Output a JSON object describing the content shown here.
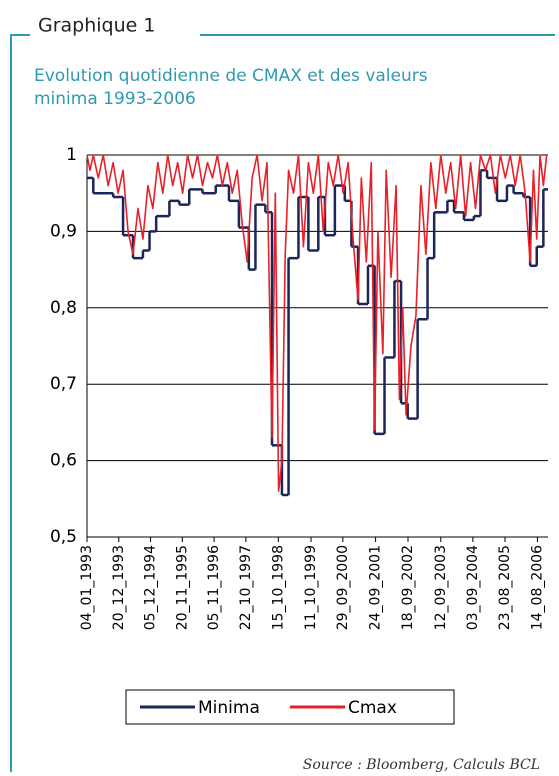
{
  "header": "Graphique 1",
  "chart_data": {
    "type": "line",
    "title": "Evolution quotidienne de CMAX et des valeurs minima 1993-2006",
    "source": "Source : Bloomberg, Calculs BCL",
    "xlim": [
      1993.01,
      2006.94
    ],
    "xticks": [
      {
        "value": 1993.01,
        "label": "04_01_1993"
      },
      {
        "value": 1993.97,
        "label": "20_12_1993"
      },
      {
        "value": 1994.93,
        "label": "05_12_1994"
      },
      {
        "value": 1995.89,
        "label": "20_11_1995"
      },
      {
        "value": 1996.85,
        "label": "05_11_1996"
      },
      {
        "value": 1997.81,
        "label": "22_10_1997"
      },
      {
        "value": 1998.79,
        "label": "15_10_1998"
      },
      {
        "value": 1999.78,
        "label": "11_10_1999"
      },
      {
        "value": 2000.74,
        "label": "29_09_2000"
      },
      {
        "value": 2001.73,
        "label": "24_09_2001"
      },
      {
        "value": 2002.71,
        "label": "18_09_2002"
      },
      {
        "value": 2003.7,
        "label": "12_09_2003"
      },
      {
        "value": 2004.67,
        "label": "03_09_2004"
      },
      {
        "value": 2005.64,
        "label": "23_08_2005"
      },
      {
        "value": 2006.62,
        "label": "14_08_2006"
      }
    ],
    "ylim": [
      0.5,
      1
    ],
    "yticks": [
      {
        "value": 0.5,
        "label": "0,5"
      },
      {
        "value": 0.6,
        "label": "0,6"
      },
      {
        "value": 0.7,
        "label": "0,7"
      },
      {
        "value": 0.8,
        "label": "0,8"
      },
      {
        "value": 0.9,
        "label": "0,9"
      },
      1
    ],
    "grid": true,
    "series": [
      {
        "name": "Minima",
        "color": "#1b2557",
        "step": true,
        "x": [
          1993.01,
          1993.2,
          1993.8,
          1994.1,
          1994.4,
          1994.7,
          1994.9,
          1995.1,
          1995.5,
          1995.8,
          1996.1,
          1996.5,
          1996.9,
          1997.3,
          1997.6,
          1997.9,
          1998.1,
          1998.4,
          1998.6,
          1998.9,
          1999.1,
          1999.4,
          1999.7,
          2000.0,
          2000.2,
          2000.5,
          2000.8,
          2001.0,
          2001.2,
          2001.5,
          2001.7,
          2002.0,
          2002.3,
          2002.5,
          2002.7,
          2003.0,
          2003.3,
          2003.5,
          2003.9,
          2004.1,
          2004.4,
          2004.7,
          2004.9,
          2005.1,
          2005.4,
          2005.7,
          2005.9,
          2006.2,
          2006.4,
          2006.6,
          2006.8
        ],
        "values": [
          0.97,
          0.95,
          0.945,
          0.895,
          0.865,
          0.875,
          0.9,
          0.92,
          0.94,
          0.935,
          0.955,
          0.95,
          0.96,
          0.94,
          0.905,
          0.85,
          0.935,
          0.925,
          0.62,
          0.555,
          0.865,
          0.945,
          0.875,
          0.945,
          0.895,
          0.96,
          0.94,
          0.88,
          0.805,
          0.855,
          0.635,
          0.735,
          0.835,
          0.675,
          0.655,
          0.785,
          0.865,
          0.925,
          0.94,
          0.925,
          0.915,
          0.92,
          0.98,
          0.97,
          0.94,
          0.96,
          0.95,
          0.945,
          0.855,
          0.88,
          0.955
        ]
      },
      {
        "name": "Cmax",
        "color": "#e8202a",
        "x": [
          1993.01,
          1993.1,
          1993.2,
          1993.35,
          1993.5,
          1993.65,
          1993.8,
          1993.95,
          1994.1,
          1994.25,
          1994.4,
          1994.55,
          1994.7,
          1994.85,
          1995.0,
          1995.15,
          1995.3,
          1995.45,
          1995.6,
          1995.75,
          1995.9,
          1996.05,
          1996.2,
          1996.35,
          1996.5,
          1996.65,
          1996.8,
          1996.95,
          1997.1,
          1997.25,
          1997.4,
          1997.55,
          1997.7,
          1997.85,
          1998.0,
          1998.15,
          1998.3,
          1998.45,
          1998.6,
          1998.7,
          1998.8,
          1998.9,
          1999.0,
          1999.1,
          1999.25,
          1999.4,
          1999.55,
          1999.7,
          1999.85,
          2000.0,
          2000.15,
          2000.3,
          2000.45,
          2000.6,
          2000.75,
          2000.9,
          2001.05,
          2001.2,
          2001.3,
          2001.45,
          2001.6,
          2001.7,
          2001.8,
          2001.95,
          2002.05,
          2002.2,
          2002.35,
          2002.45,
          2002.55,
          2002.65,
          2002.8,
          2002.95,
          2003.1,
          2003.25,
          2003.4,
          2003.55,
          2003.7,
          2003.85,
          2004.0,
          2004.15,
          2004.3,
          2004.45,
          2004.6,
          2004.75,
          2004.9,
          2005.05,
          2005.2,
          2005.35,
          2005.5,
          2005.65,
          2005.8,
          2005.95,
          2006.1,
          2006.25,
          2006.4,
          2006.5,
          2006.6,
          2006.7,
          2006.8,
          2006.9
        ],
        "values": [
          1,
          0.98,
          1,
          0.97,
          1,
          0.96,
          0.99,
          0.95,
          0.98,
          0.9,
          0.87,
          0.93,
          0.89,
          0.96,
          0.93,
          0.99,
          0.95,
          1,
          0.96,
          0.99,
          0.95,
          1,
          0.97,
          1,
          0.96,
          0.99,
          0.97,
          1,
          0.96,
          0.99,
          0.95,
          0.98,
          0.91,
          0.86,
          0.97,
          1,
          0.94,
          0.99,
          0.63,
          0.95,
          0.56,
          0.6,
          0.87,
          0.98,
          0.95,
          1,
          0.88,
          0.99,
          0.95,
          1,
          0.9,
          0.99,
          0.96,
          1,
          0.95,
          0.99,
          0.89,
          0.81,
          0.97,
          0.86,
          0.99,
          0.64,
          0.9,
          0.74,
          0.98,
          0.84,
          0.96,
          0.68,
          0.8,
          0.66,
          0.75,
          0.79,
          0.96,
          0.87,
          0.99,
          0.93,
          1,
          0.95,
          0.99,
          0.93,
          1,
          0.92,
          0.99,
          0.93,
          1,
          0.98,
          1,
          0.95,
          1,
          0.97,
          1,
          0.96,
          1,
          0.95,
          0.86,
          0.98,
          0.89,
          1,
          0.96,
          1
        ]
      }
    ]
  }
}
